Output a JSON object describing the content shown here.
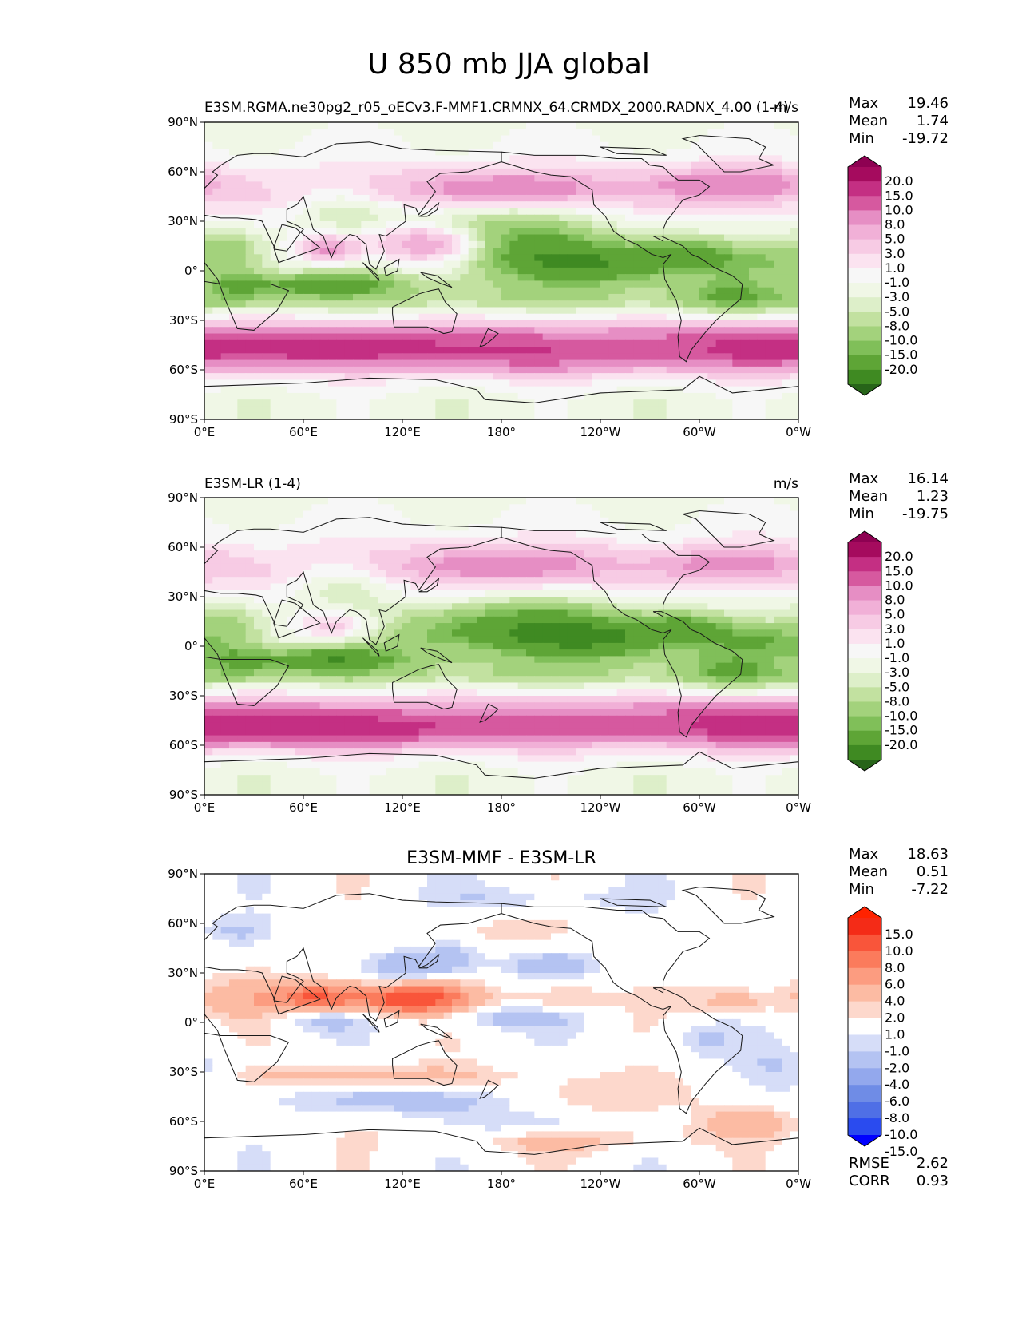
{
  "figure_title": "U 850 mb JJA global",
  "colors": {
    "green_pink": [
      "#276419",
      "#3f8a22",
      "#5ea536",
      "#80bf59",
      "#a3d27c",
      "#c2e1a0",
      "#ddefc9",
      "#f0f7e6",
      "#f7f7f7",
      "#fbe3f0",
      "#f7cbe4",
      "#f1b0d7",
      "#e68ec4",
      "#d6599f",
      "#c42f83",
      "#a50b5e",
      "#8e0152"
    ],
    "blue_red": [
      "#0000ff",
      "#2a4bef",
      "#4f6fe6",
      "#6f8ce6",
      "#93a8ed",
      "#b4c3f2",
      "#d6ddf8",
      "#ffffff",
      "#fdd8cc",
      "#fcbba3",
      "#fc9c80",
      "#fb7b5c",
      "#f9553a",
      "#f42b17",
      "#ff2200"
    ],
    "coast": "#1a1a1a"
  },
  "axes": {
    "x_ticks": [
      "0°E",
      "60°E",
      "120°E",
      "180°",
      "120°W",
      "60°W",
      "0°W"
    ],
    "y_ticks": [
      "90°N",
      "60°N",
      "30°N",
      "0°",
      "30°S",
      "60°S",
      "90°S"
    ]
  },
  "chart_data": [
    {
      "type": "heatmap",
      "title_left": "E3SM.RGMA.ne30pg2_r05_oECv3.F-MMF1.CRMNX_64.CRMDX_2000.RADNX_4.00 (1-4)",
      "title_right": "m/s",
      "stats": [
        {
          "label": "Max",
          "value": "19.46"
        },
        {
          "label": "Mean",
          "value": "1.74"
        },
        {
          "label": "Min",
          "value": "-19.72"
        }
      ],
      "colorbar": {
        "palette": "green_pink",
        "levels": [
          "20.0",
          "15.0",
          "10.0",
          "8.0",
          "5.0",
          "3.0",
          "1.0",
          "-1.0",
          "-3.0",
          "-5.0",
          "-8.0",
          "-10.0",
          "-15.0",
          "-20.0"
        ]
      },
      "lon_range": [
        0,
        360
      ],
      "lat_range": [
        -90,
        90
      ],
      "features": [
        {
          "lon": 135,
          "lat": 16,
          "sx": 25,
          "sy": 8,
          "amp": 14
        },
        {
          "lon": 75,
          "lat": 13,
          "sx": 14,
          "sy": 6,
          "amp": 12
        },
        {
          "lon": 240,
          "lat": 3,
          "sx": 45,
          "sy": 8,
          "amp": -12
        },
        {
          "lon": 200,
          "lat": 15,
          "sx": 45,
          "sy": 10,
          "amp": -7
        },
        {
          "lon": 75,
          "lat": -8,
          "sx": 30,
          "sy": 5,
          "amp": -10
        },
        {
          "lon": 290,
          "lat": 12,
          "sx": 20,
          "sy": 6,
          "amp": -9
        },
        {
          "lon": 340,
          "lat": 5,
          "sx": 25,
          "sy": 6,
          "amp": -5
        },
        {
          "lon": 20,
          "lat": -8,
          "sx": 15,
          "sy": 8,
          "amp": -7
        },
        {
          "lon": 15,
          "lat": 15,
          "sx": 15,
          "sy": 8,
          "amp": -6
        },
        {
          "lon": 175,
          "lat": 30,
          "sx": 40,
          "sy": 12,
          "amp": -6
        },
        {
          "lon": 320,
          "lat": -15,
          "sx": 20,
          "sy": 8,
          "amp": -6
        },
        {
          "lon": 180,
          "lat": 50,
          "sx": 50,
          "sy": 8,
          "amp": 9
        },
        {
          "lon": 320,
          "lat": 53,
          "sx": 35,
          "sy": 7,
          "amp": 10
        },
        {
          "lon": 80,
          "lat": -47,
          "sx": 55,
          "sy": 7,
          "amp": 10
        },
        {
          "lon": 200,
          "lat": -50,
          "sx": 45,
          "sy": 8,
          "amp": 7
        },
        {
          "lon": 330,
          "lat": -48,
          "sx": 45,
          "sy": 8,
          "amp": 8
        },
        {
          "lon": 85,
          "lat": 40,
          "sx": 20,
          "sy": 10,
          "amp": -5
        }
      ],
      "base": [
        [
          -90,
          0
        ],
        [
          -78,
          0
        ],
        [
          -65,
          3
        ],
        [
          -52,
          12
        ],
        [
          -42,
          13
        ],
        [
          -30,
          4
        ],
        [
          -18,
          -5
        ],
        [
          -8,
          -3
        ],
        [
          0,
          -1
        ],
        [
          10,
          -1
        ],
        [
          20,
          0
        ],
        [
          32,
          2
        ],
        [
          45,
          5
        ],
        [
          55,
          4
        ],
        [
          68,
          2
        ],
        [
          80,
          1
        ],
        [
          90,
          0
        ]
      ]
    },
    {
      "type": "heatmap",
      "title_left": "E3SM-LR (1-4)",
      "title_right": "m/s",
      "stats": [
        {
          "label": "Max",
          "value": "16.14"
        },
        {
          "label": "Mean",
          "value": "1.23"
        },
        {
          "label": "Min",
          "value": "-19.75"
        }
      ],
      "colorbar": {
        "palette": "green_pink",
        "levels": [
          "20.0",
          "15.0",
          "10.0",
          "8.0",
          "5.0",
          "3.0",
          "1.0",
          "-1.0",
          "-3.0",
          "-5.0",
          "-8.0",
          "-10.0",
          "-15.0",
          "-20.0"
        ]
      },
      "lon_range": [
        0,
        360
      ],
      "lat_range": [
        -90,
        90
      ],
      "features": [
        {
          "lon": 80,
          "lat": 12,
          "sx": 18,
          "sy": 6,
          "amp": 8
        },
        {
          "lon": 240,
          "lat": 3,
          "sx": 45,
          "sy": 8,
          "amp": -12
        },
        {
          "lon": 200,
          "lat": 15,
          "sx": 45,
          "sy": 10,
          "amp": -10
        },
        {
          "lon": 75,
          "lat": -8,
          "sx": 30,
          "sy": 5,
          "amp": -11
        },
        {
          "lon": 290,
          "lat": 12,
          "sx": 20,
          "sy": 6,
          "amp": -9
        },
        {
          "lon": 340,
          "lat": 3,
          "sx": 25,
          "sy": 6,
          "amp": -7
        },
        {
          "lon": 20,
          "lat": -8,
          "sx": 15,
          "sy": 8,
          "amp": -7
        },
        {
          "lon": 15,
          "lat": 15,
          "sx": 15,
          "sy": 8,
          "amp": -6
        },
        {
          "lon": 140,
          "lat": 5,
          "sx": 30,
          "sy": 10,
          "amp": -5
        },
        {
          "lon": 320,
          "lat": -15,
          "sx": 20,
          "sy": 8,
          "amp": -6
        },
        {
          "lon": 180,
          "lat": 50,
          "sx": 50,
          "sy": 8,
          "amp": 8
        },
        {
          "lon": 320,
          "lat": 50,
          "sx": 35,
          "sy": 7,
          "amp": 7
        },
        {
          "lon": 80,
          "lat": -50,
          "sx": 60,
          "sy": 7,
          "amp": 11
        },
        {
          "lon": 200,
          "lat": -50,
          "sx": 45,
          "sy": 8,
          "amp": 3
        },
        {
          "lon": 330,
          "lat": -48,
          "sx": 45,
          "sy": 8,
          "amp": 9
        },
        {
          "lon": 85,
          "lat": 40,
          "sx": 20,
          "sy": 10,
          "amp": -5
        }
      ],
      "base": [
        [
          -90,
          0
        ],
        [
          -78,
          0
        ],
        [
          -65,
          3
        ],
        [
          -52,
          12
        ],
        [
          -42,
          13
        ],
        [
          -30,
          4
        ],
        [
          -18,
          -5
        ],
        [
          -8,
          -3
        ],
        [
          0,
          -1
        ],
        [
          10,
          -1
        ],
        [
          20,
          0
        ],
        [
          32,
          2
        ],
        [
          45,
          5
        ],
        [
          55,
          4
        ],
        [
          68,
          2
        ],
        [
          80,
          1
        ],
        [
          90,
          0
        ]
      ]
    },
    {
      "type": "heatmap",
      "title_center": "E3SM-MMF - E3SM-LR",
      "stats": [
        {
          "label": "Max",
          "value": "18.63"
        },
        {
          "label": "Mean",
          "value": "0.51"
        },
        {
          "label": "Min",
          "value": "-7.22"
        }
      ],
      "bottom_stats": [
        {
          "label": "RMSE",
          "value": "2.62"
        },
        {
          "label": "CORR",
          "value": "0.93"
        }
      ],
      "colorbar": {
        "palette": "blue_red",
        "levels": [
          "15.0",
          "10.0",
          "8.0",
          "6.0",
          "4.0",
          "2.0",
          "1.0",
          "-1.0",
          "-2.0",
          "-4.0",
          "-6.0",
          "-8.0",
          "-10.0",
          "-15.0"
        ]
      },
      "lon_range": [
        0,
        360
      ],
      "lat_range": [
        -90,
        90
      ],
      "features": [
        {
          "lon": 125,
          "lat": 15,
          "sx": 25,
          "sy": 7,
          "amp": 10
        },
        {
          "lon": 70,
          "lat": 15,
          "sx": 15,
          "sy": 6,
          "amp": 6
        },
        {
          "lon": 40,
          "lat": 15,
          "sx": 40,
          "sy": 9,
          "amp": 3
        },
        {
          "lon": 215,
          "lat": 15,
          "sx": 20,
          "sy": 6,
          "amp": 3
        },
        {
          "lon": 320,
          "lat": 13,
          "sx": 20,
          "sy": 6,
          "amp": 3
        },
        {
          "lon": 120,
          "lat": 32,
          "sx": 15,
          "sy": 8,
          "amp": -4
        },
        {
          "lon": 150,
          "lat": 40,
          "sx": 15,
          "sy": 10,
          "amp": -3
        },
        {
          "lon": 210,
          "lat": 35,
          "sx": 20,
          "sy": 6,
          "amp": -3
        },
        {
          "lon": 70,
          "lat": 2,
          "sx": 20,
          "sy": 5,
          "amp": -3
        },
        {
          "lon": 180,
          "lat": 3,
          "sx": 30,
          "sy": 5,
          "amp": -3
        },
        {
          "lon": 120,
          "lat": -47,
          "sx": 50,
          "sy": 6,
          "amp": -3
        },
        {
          "lon": 200,
          "lat": -62,
          "sx": 30,
          "sy": 6,
          "amp": -3
        },
        {
          "lon": 300,
          "lat": -10,
          "sx": 15,
          "sy": 8,
          "amp": -2
        },
        {
          "lon": 350,
          "lat": -30,
          "sx": 20,
          "sy": 10,
          "amp": -2
        },
        {
          "lon": 100,
          "lat": -33,
          "sx": 60,
          "sy": 5,
          "amp": 3
        },
        {
          "lon": 250,
          "lat": -45,
          "sx": 40,
          "sy": 10,
          "amp": 2
        },
        {
          "lon": 220,
          "lat": -70,
          "sx": 60,
          "sy": 6,
          "amp": 2.5
        },
        {
          "lon": 330,
          "lat": -60,
          "sx": 20,
          "sy": 6,
          "amp": 3
        },
        {
          "lon": 160,
          "lat": 55,
          "sx": 40,
          "sy": 8,
          "amp": 1.8
        },
        {
          "lon": 200,
          "lat": 75,
          "sx": 40,
          "sy": 6,
          "amp": -2
        },
        {
          "lon": 20,
          "lat": 55,
          "sx": 15,
          "sy": 6,
          "amp": -2
        }
      ],
      "base": [
        [
          -90,
          0
        ],
        [
          90,
          0
        ]
      ]
    }
  ]
}
